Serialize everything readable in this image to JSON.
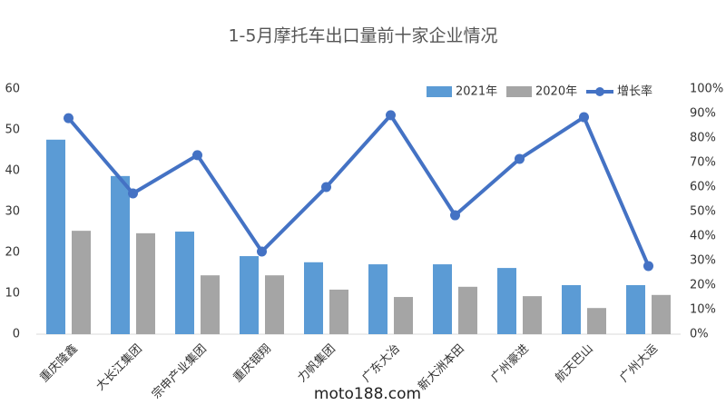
{
  "chart_data": {
    "type": "bar",
    "title": "1-5月摩托车出口量前十家企业情况",
    "categories": [
      "重庆隆鑫",
      "大长江集团",
      "宗申产业集团",
      "重庆银翔",
      "力帆集团",
      "广东大冶",
      "新大洲本田",
      "广州豪进",
      "航天巴山",
      "广州大运"
    ],
    "series": [
      {
        "name": "2021年",
        "type": "bar",
        "color": "#5b9bd5",
        "values": [
          47.6,
          38.7,
          25.1,
          19.1,
          17.6,
          17.1,
          17.1,
          16.2,
          12,
          12
        ]
      },
      {
        "name": "2020年",
        "type": "bar",
        "color": "#a5a5a5",
        "values": [
          25.3,
          24.7,
          14.4,
          14.4,
          10.9,
          9.1,
          11.6,
          9.3,
          6.4,
          9.6
        ]
      },
      {
        "name": "增长率",
        "type": "line",
        "axis": "y2",
        "color": "#4472c4",
        "values": [
          88.1,
          57.4,
          73,
          33.7,
          60,
          89.3,
          48.5,
          71.5,
          88.5,
          27.8
        ]
      }
    ],
    "ylim": [
      0,
      60
    ],
    "yticks": [
      0,
      10,
      20,
      30,
      40,
      50,
      60
    ],
    "y2lim": [
      0,
      100
    ],
    "y2ticks": [
      {
        "value": 0,
        "label": "0%"
      },
      {
        "value": 10,
        "label": "10%"
      },
      {
        "value": 20,
        "label": "20%"
      },
      {
        "value": 30,
        "label": "30%"
      },
      {
        "value": 40,
        "label": "40%"
      },
      {
        "value": 50,
        "label": "50%"
      },
      {
        "value": 60,
        "label": "60%"
      },
      {
        "value": 70,
        "label": "70%"
      },
      {
        "value": 80,
        "label": "80%"
      },
      {
        "value": 90,
        "label": "90%"
      },
      {
        "value": 100,
        "label": "100%"
      }
    ],
    "grid": false,
    "legend": "top-right",
    "watermark": "moto188.com"
  }
}
